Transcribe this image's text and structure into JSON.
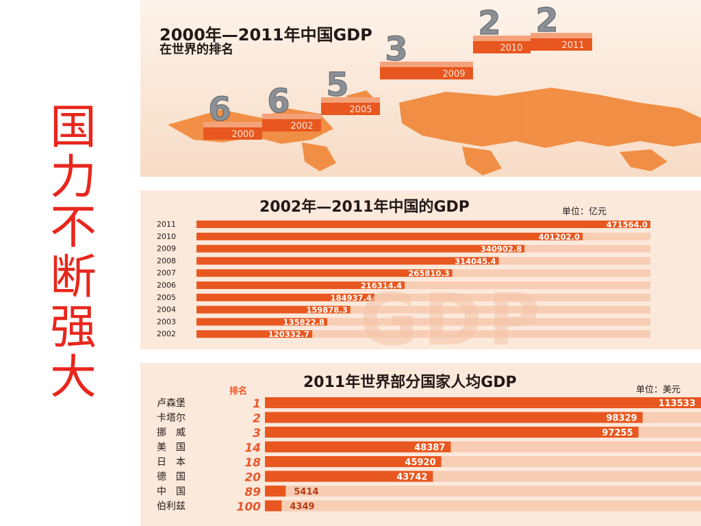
{
  "side_title": [
    "国",
    "力",
    "不",
    "断",
    "强",
    "大"
  ],
  "colors": {
    "accent": "#e8571f",
    "side_title": "#e8261c",
    "bar_track": "#f7cdb4",
    "map": "#f08a3e"
  },
  "ranking": {
    "title": "2000年—2011年中国GDP",
    "subtitle": "在世界的排名",
    "steps": [
      {
        "year": "2000",
        "rank": "6"
      },
      {
        "year": "2002",
        "rank": "6"
      },
      {
        "year": "2005",
        "rank": "5"
      },
      {
        "year": "2009",
        "rank": "3"
      },
      {
        "year": "2010",
        "rank": "2"
      },
      {
        "year": "2011",
        "rank": "2"
      }
    ]
  },
  "chart_data": [
    {
      "type": "bar",
      "orientation": "horizontal",
      "title": "2002年—2011年中国的GDP",
      "unit": "单位：亿元",
      "watermark": "GDP",
      "xlim": [
        0,
        471564.0
      ],
      "categories": [
        "2011",
        "2010",
        "2009",
        "2008",
        "2007",
        "2006",
        "2005",
        "2004",
        "2003",
        "2002"
      ],
      "values": [
        471564.0,
        401202.0,
        340902.8,
        314045.4,
        265810.3,
        216314.4,
        184937.4,
        159878.3,
        135822.8,
        120332.7
      ],
      "labels": [
        "471564.0",
        "401202.0",
        "340902.8",
        "314045.4",
        "265810.3",
        "216314.4",
        "184937.4",
        "159878.3",
        "135822.8",
        "120332.7"
      ]
    },
    {
      "type": "bar",
      "orientation": "horizontal",
      "title": "2011年世界部分国家人均GDP",
      "unit": "单位：美元",
      "rank_header": "排名",
      "categories": [
        "卢森堡",
        "卡塔尔",
        "挪　威",
        "美　国",
        "日　本",
        "德　国",
        "中　国",
        "伯利兹"
      ],
      "ranks": [
        "1",
        "2",
        "3",
        "14",
        "18",
        "20",
        "89",
        "100"
      ],
      "values": [
        113533,
        98329,
        97255,
        48387,
        45920,
        43742,
        5414,
        4349
      ],
      "labels": [
        "113533",
        "98329",
        "97255",
        "48387",
        "45920",
        "43742",
        "5414",
        "4349"
      ]
    }
  ]
}
